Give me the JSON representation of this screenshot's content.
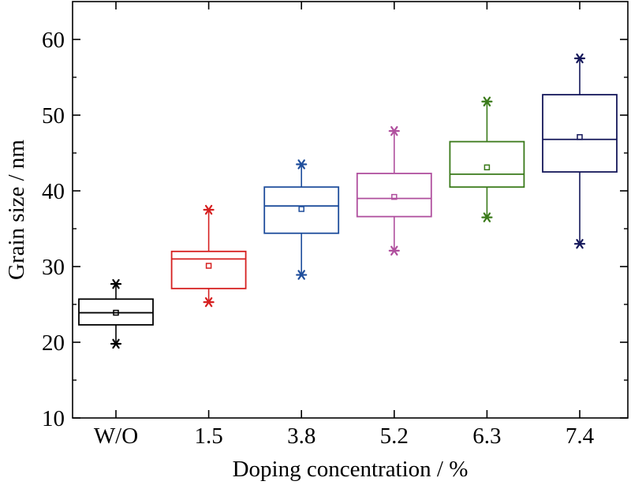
{
  "chart_data": {
    "type": "box",
    "xlabel": "Doping concentration / %",
    "ylabel": "Grain size / nm",
    "ylim": [
      10,
      65
    ],
    "yticks": [
      10,
      20,
      30,
      40,
      50,
      60
    ],
    "grid": false,
    "categories": [
      "W/O",
      "1.5",
      "3.8",
      "5.2",
      "6.3",
      "7.4"
    ],
    "boxes": [
      {
        "category": "W/O",
        "color": "#000000",
        "min": 19.8,
        "q1": 22.3,
        "median": 23.9,
        "q3": 25.7,
        "max": 27.7,
        "mean": 23.9
      },
      {
        "category": "1.5",
        "color": "#d62020",
        "min": 25.3,
        "q1": 27.1,
        "median": 31.0,
        "q3": 32.0,
        "max": 37.5,
        "mean": 30.1
      },
      {
        "category": "3.8",
        "color": "#1f4e9c",
        "min": 28.9,
        "q1": 34.4,
        "median": 38.0,
        "q3": 40.5,
        "max": 43.5,
        "mean": 37.6
      },
      {
        "category": "5.2",
        "color": "#b0509e",
        "min": 32.1,
        "q1": 36.6,
        "median": 39.0,
        "q3": 42.3,
        "max": 47.9,
        "mean": 39.2
      },
      {
        "category": "6.3",
        "color": "#3a7a1a",
        "min": 36.5,
        "q1": 40.5,
        "median": 42.2,
        "q3": 46.5,
        "max": 51.8,
        "mean": 43.1
      },
      {
        "category": "7.4",
        "color": "#14175a",
        "min": 33.0,
        "q1": 42.5,
        "median": 46.8,
        "q3": 52.7,
        "max": 57.5,
        "mean": 47.1
      }
    ]
  }
}
